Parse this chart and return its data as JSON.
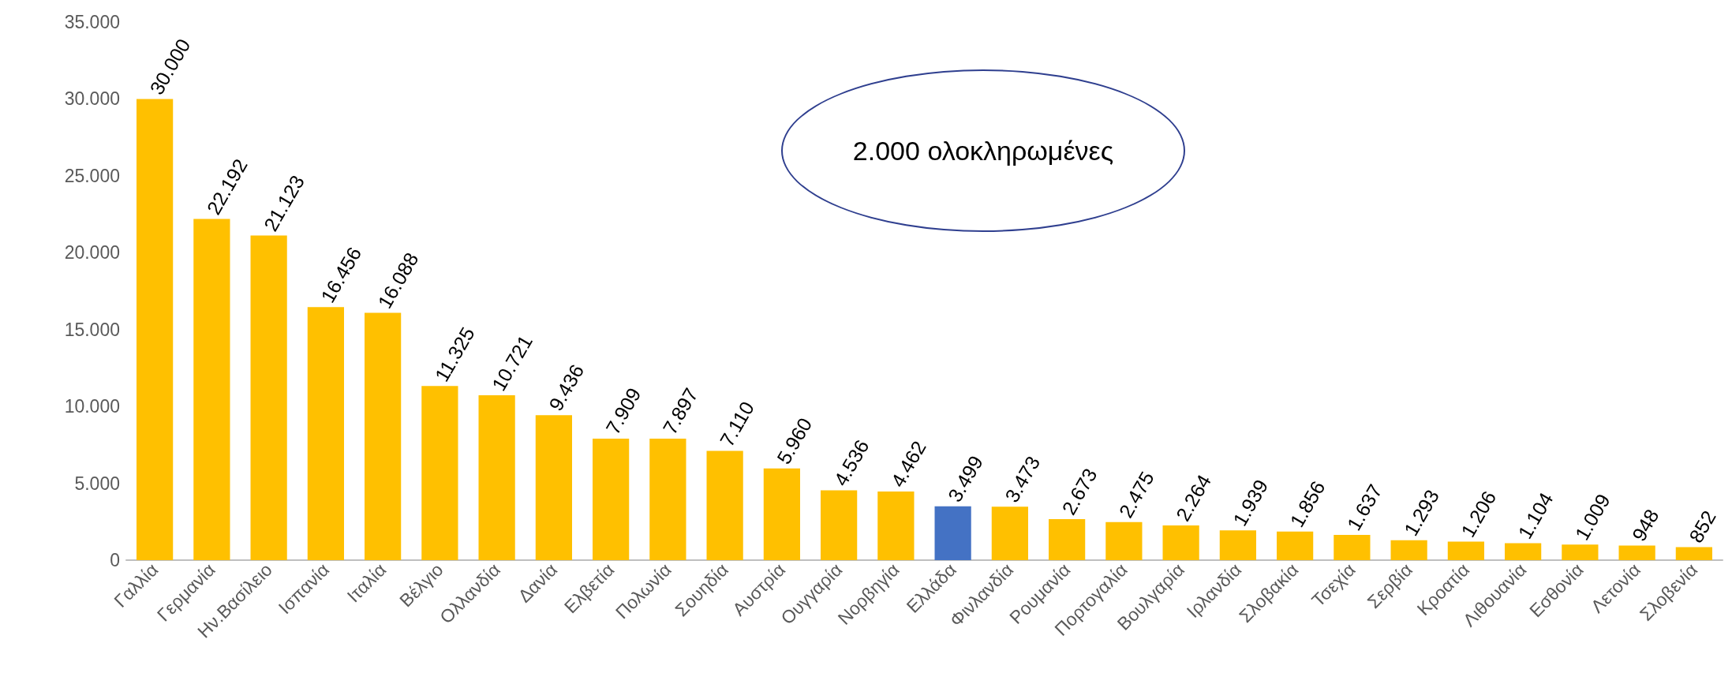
{
  "chart_data": {
    "type": "bar",
    "categories": [
      "Γαλλία",
      "Γερμανία",
      "Ην.Βασίλειο",
      "Ισπανία",
      "Ιταλία",
      "Βέλγιο",
      "Ολλανδία",
      "Δανία",
      "Ελβετία",
      "Πολωνία",
      "Σουηδία",
      "Αυστρία",
      "Ουγγαρία",
      "Νορβηγία",
      "Ελλάδα",
      "Φινλανδία",
      "Ρουμανία",
      "Πορτογαλία",
      "Βουλγαρία",
      "Ιρλανδία",
      "Σλοβακία",
      "Τσεχία",
      "Σερβία",
      "Κροατία",
      "Λιθουανία",
      "Εσθονία",
      "Λετονία",
      "Σλοβενία"
    ],
    "values": [
      30000,
      22192,
      21123,
      16456,
      16088,
      11325,
      10721,
      9436,
      7909,
      7897,
      7110,
      5960,
      4536,
      4462,
      3499,
      3473,
      2673,
      2475,
      2264,
      1939,
      1856,
      1637,
      1293,
      1206,
      1104,
      1009,
      948,
      852
    ],
    "colors": [
      "#ffc000",
      "#ffc000",
      "#ffc000",
      "#ffc000",
      "#ffc000",
      "#ffc000",
      "#ffc000",
      "#ffc000",
      "#ffc000",
      "#ffc000",
      "#ffc000",
      "#ffc000",
      "#ffc000",
      "#ffc000",
      "#4472c4",
      "#ffc000",
      "#ffc000",
      "#ffc000",
      "#ffc000",
      "#ffc000",
      "#ffc000",
      "#ffc000",
      "#ffc000",
      "#ffc000",
      "#ffc000",
      "#ffc000",
      "#ffc000",
      "#ffc000"
    ],
    "value_labels": [
      "30.000",
      "22.192",
      "21.123",
      "16.456",
      "16.088",
      "11.325",
      "10.721",
      "9.436",
      "7.909",
      "7.897",
      "7.110",
      "5.960",
      "4.536",
      "4.462",
      "3.499",
      "3.473",
      "2.673",
      "2.475",
      "2.264",
      "1.939",
      "1.856",
      "1.637",
      "1.293",
      "1.206",
      "1.104",
      "1.009",
      "948",
      "852"
    ],
    "ylim": [
      0,
      35000
    ],
    "yticks": [
      {
        "value": 0,
        "label": "0"
      },
      {
        "value": 5000,
        "label": "5.000"
      },
      {
        "value": 10000,
        "label": "10.000"
      },
      {
        "value": 15000,
        "label": "15.000"
      },
      {
        "value": 20000,
        "label": "20.000"
      },
      {
        "value": 25000,
        "label": "25.000"
      },
      {
        "value": 30000,
        "label": "30.000"
      },
      {
        "value": 35000,
        "label": "35.000"
      }
    ],
    "annotations": [
      "2.000 ολοκληρωμένες"
    ]
  }
}
